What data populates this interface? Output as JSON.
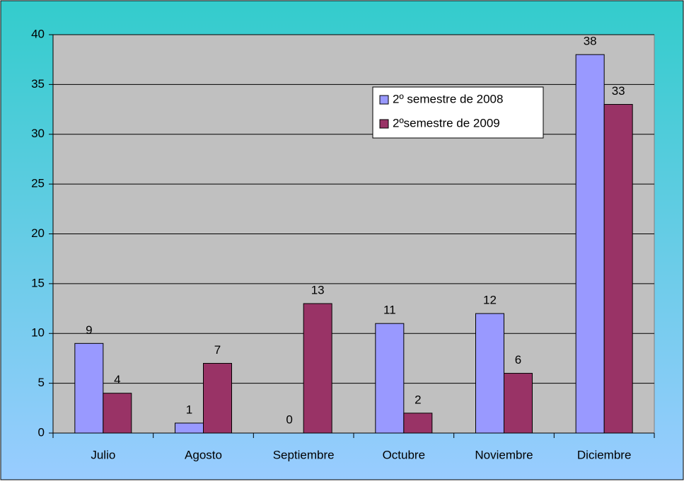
{
  "chart_data": {
    "type": "bar",
    "categories": [
      "Julio",
      "Agosto",
      "Septiembre",
      "Octubre",
      "Noviembre",
      "Diciembre"
    ],
    "series": [
      {
        "name": "2º semestre de 2008",
        "color": "#9999ff",
        "values": [
          9,
          1,
          0,
          11,
          12,
          38
        ]
      },
      {
        "name": "2ºsemestre de 2009",
        "color": "#993366",
        "values": [
          4,
          7,
          13,
          2,
          6,
          33
        ]
      }
    ],
    "ylim": [
      0,
      40
    ],
    "yticks": [
      0,
      5,
      10,
      15,
      20,
      25,
      30,
      35,
      40
    ],
    "grid": true,
    "legend": "upper right"
  }
}
